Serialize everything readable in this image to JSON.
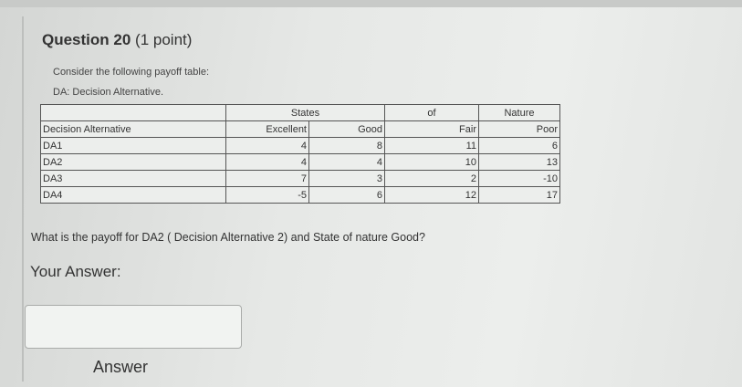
{
  "question": {
    "title": "Question 20",
    "points": "(1 point)",
    "intro": "Consider the following payoff table:",
    "note": "DA: Decision Alternative.",
    "prompt": "What is the payoff for DA2 ( Decision Alternative 2) and State of nature Good?"
  },
  "table": {
    "header_top": [
      "States",
      "of",
      "Nature"
    ],
    "header": [
      "Decision Alternative",
      "Excellent",
      "Good",
      "Fair",
      "Poor"
    ],
    "rows": [
      [
        "DA1",
        "4",
        "8",
        "11",
        "6"
      ],
      [
        "DA2",
        "4",
        "4",
        "10",
        "13"
      ],
      [
        "DA3",
        "7",
        "3",
        "2",
        "-10"
      ],
      [
        "DA4",
        "-5",
        "6",
        "12",
        "17"
      ]
    ]
  },
  "answer": {
    "section_label": "Your Answer:",
    "value": "",
    "input_label": "Answer"
  }
}
